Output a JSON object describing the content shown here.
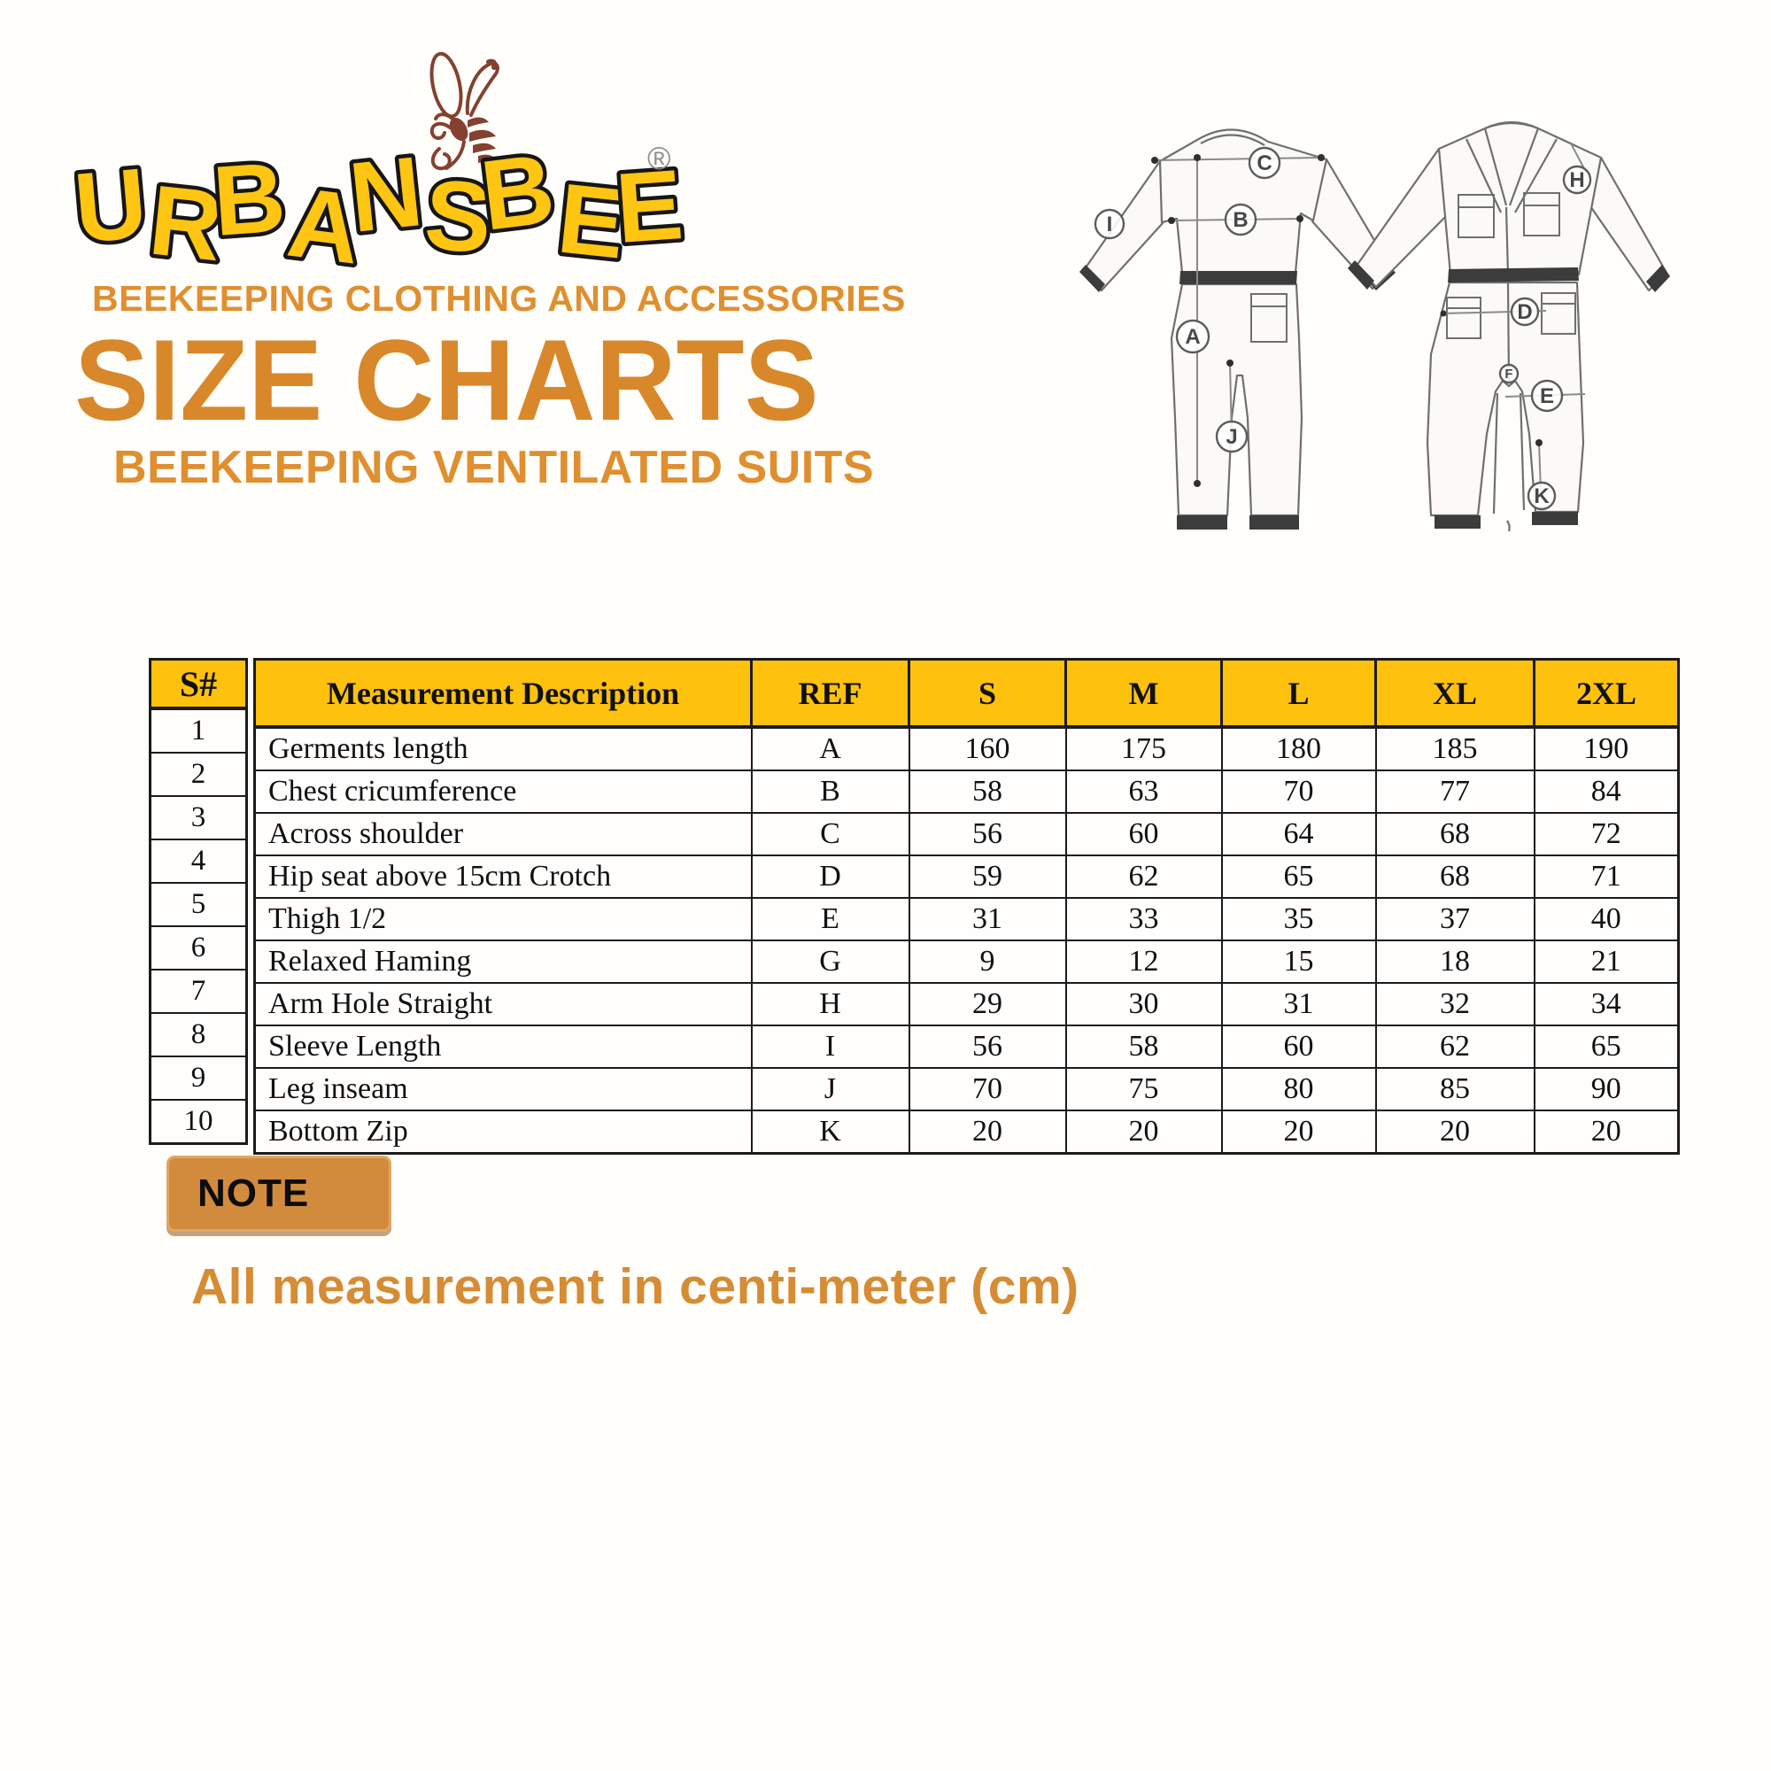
{
  "brand": {
    "name": "URBANSBEE",
    "registered_mark": "®",
    "tagline": "BEEKEEPING CLOTHING AND ACCESSORIES",
    "title": "SIZE CHARTS",
    "subtitle": "BEEKEEPING VENTILATED SUITS"
  },
  "diagram": {
    "back_view_labels": [
      "C",
      "B",
      "I",
      "A",
      "J"
    ],
    "front_view_labels": [
      "H",
      "D",
      "F",
      "E",
      "K"
    ]
  },
  "size_table": {
    "serial_header": "S#",
    "serials": [
      "1",
      "2",
      "3",
      "4",
      "5",
      "6",
      "7",
      "8",
      "9",
      "10"
    ],
    "columns": [
      "Measurement Description",
      "REF",
      "S",
      "M",
      "L",
      "XL",
      "2XL"
    ],
    "rows": [
      {
        "description": "Germents length",
        "ref": "A",
        "values": [
          "160",
          "175",
          "180",
          "185",
          "190"
        ]
      },
      {
        "description": "Chest cricumference",
        "ref": "B",
        "values": [
          "58",
          "63",
          "70",
          "77",
          "84"
        ]
      },
      {
        "description": "Across shoulder",
        "ref": "C",
        "values": [
          "56",
          "60",
          "64",
          "68",
          "72"
        ]
      },
      {
        "description": "Hip seat above 15cm Crotch",
        "ref": "D",
        "values": [
          "59",
          "62",
          "65",
          "68",
          "71"
        ]
      },
      {
        "description": "Thigh 1/2",
        "ref": "E",
        "values": [
          "31",
          "33",
          "35",
          "37",
          "40"
        ]
      },
      {
        "description": "Relaxed Haming",
        "ref": "G",
        "values": [
          "9",
          "12",
          "15",
          "18",
          "21"
        ]
      },
      {
        "description": "Arm Hole Straight",
        "ref": "H",
        "values": [
          "29",
          "30",
          "31",
          "32",
          "34"
        ]
      },
      {
        "description": "Sleeve Length",
        "ref": "I",
        "values": [
          "56",
          "58",
          "60",
          "62",
          "65"
        ]
      },
      {
        "description": "Leg inseam",
        "ref": "J",
        "values": [
          "70",
          "75",
          "80",
          "85",
          "90"
        ]
      },
      {
        "description": "Bottom Zip",
        "ref": "K",
        "values": [
          "20",
          "20",
          "20",
          "20",
          "20"
        ]
      }
    ]
  },
  "note": {
    "label": "NOTE",
    "text": "All measurement in centi-meter (cm)"
  },
  "colors": {
    "brand_yellow": "#FEC10D",
    "heading_orange": "#D8882A",
    "accent_orange": "#DF8F2F",
    "note_badge_fill": "#D28B3D",
    "bee_brown": "#84412F",
    "table_border": "#1b1b1b"
  }
}
